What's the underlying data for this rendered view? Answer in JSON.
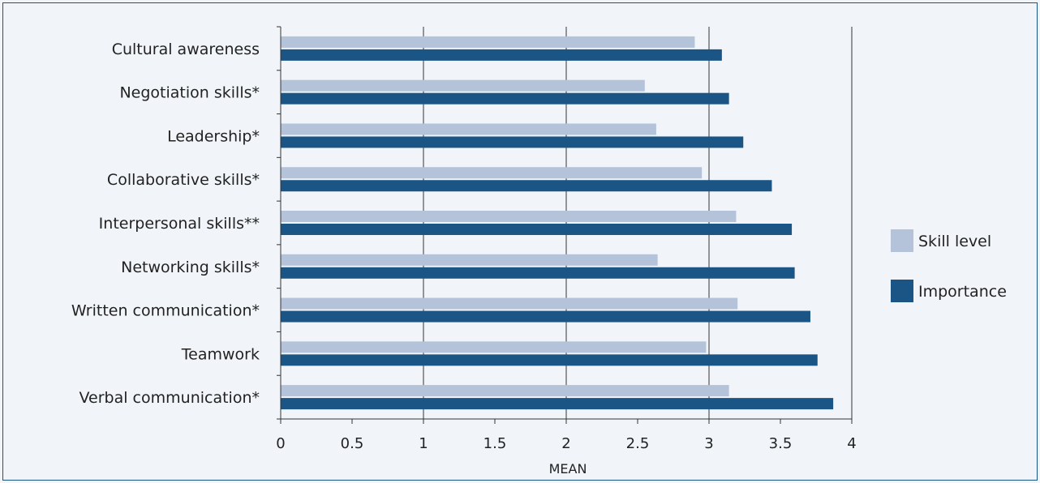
{
  "chart_data": {
    "type": "bar",
    "orientation": "horizontal",
    "categories": [
      "Cultural awareness",
      "Negotiation skills*",
      "Leadership*",
      "Collaborative skills*",
      "Interpersonal skills**",
      "Networking skills*",
      "Written communication*",
      "Teamwork",
      "Verbal communication*"
    ],
    "series": [
      {
        "name": "Skill level",
        "color": "#b4c3da",
        "values": [
          2.9,
          2.55,
          2.63,
          2.95,
          3.19,
          2.64,
          3.2,
          2.98,
          3.14
        ]
      },
      {
        "name": "Importance",
        "color": "#1a5585",
        "values": [
          3.09,
          3.14,
          3.24,
          3.44,
          3.58,
          3.6,
          3.71,
          3.76,
          3.87
        ]
      }
    ],
    "title": "",
    "xlabel": "MEAN",
    "ylabel": "",
    "xlim": [
      0,
      4
    ],
    "xticks": [
      "0",
      "0.5",
      "1",
      "1.5",
      "2",
      "2.5",
      "3",
      "3.5",
      "4"
    ],
    "grid": "vertical",
    "legend": "right"
  }
}
